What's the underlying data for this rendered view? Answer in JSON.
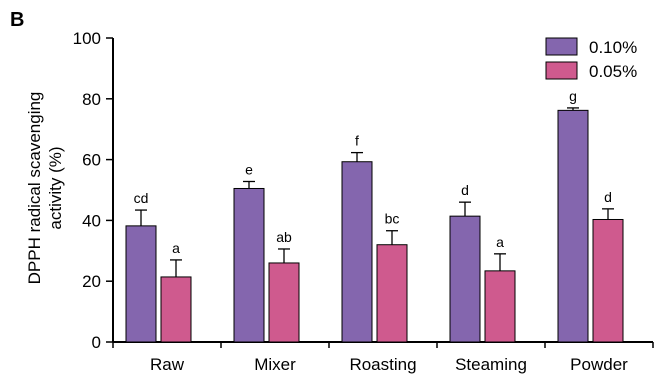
{
  "panel_label": "B",
  "colors": {
    "series_0": "#8466ae",
    "series_1": "#cf5a8e",
    "axis": "#000000"
  },
  "chart_data": {
    "type": "bar",
    "title": "",
    "xlabel": "",
    "ylabel_lines": [
      "DPPH radical scavenging",
      "activity (%)"
    ],
    "ylim": [
      0,
      100
    ],
    "yticks": [
      0,
      20,
      40,
      60,
      80,
      100
    ],
    "ytick_labels": [
      "0",
      "20",
      "40",
      "60",
      "80",
      "100"
    ],
    "grid": false,
    "legend_position": "top-right",
    "categories": [
      "Raw",
      "Mixer",
      "Roasting",
      "Steaming",
      "Powder"
    ],
    "series": [
      {
        "name": "0.10%",
        "values": [
          38.2,
          50.5,
          59.3,
          41.4,
          76.2
        ],
        "errors": [
          5.2,
          2.3,
          3.0,
          4.6,
          0.8
        ],
        "labels": [
          "cd",
          "e",
          "f",
          "d",
          "g"
        ]
      },
      {
        "name": "0.05%",
        "values": [
          21.4,
          26.0,
          32.0,
          23.4,
          40.3
        ],
        "errors": [
          5.6,
          4.6,
          4.6,
          5.6,
          3.5
        ],
        "labels": [
          "a",
          "ab",
          "bc",
          "a",
          "d"
        ]
      }
    ]
  }
}
